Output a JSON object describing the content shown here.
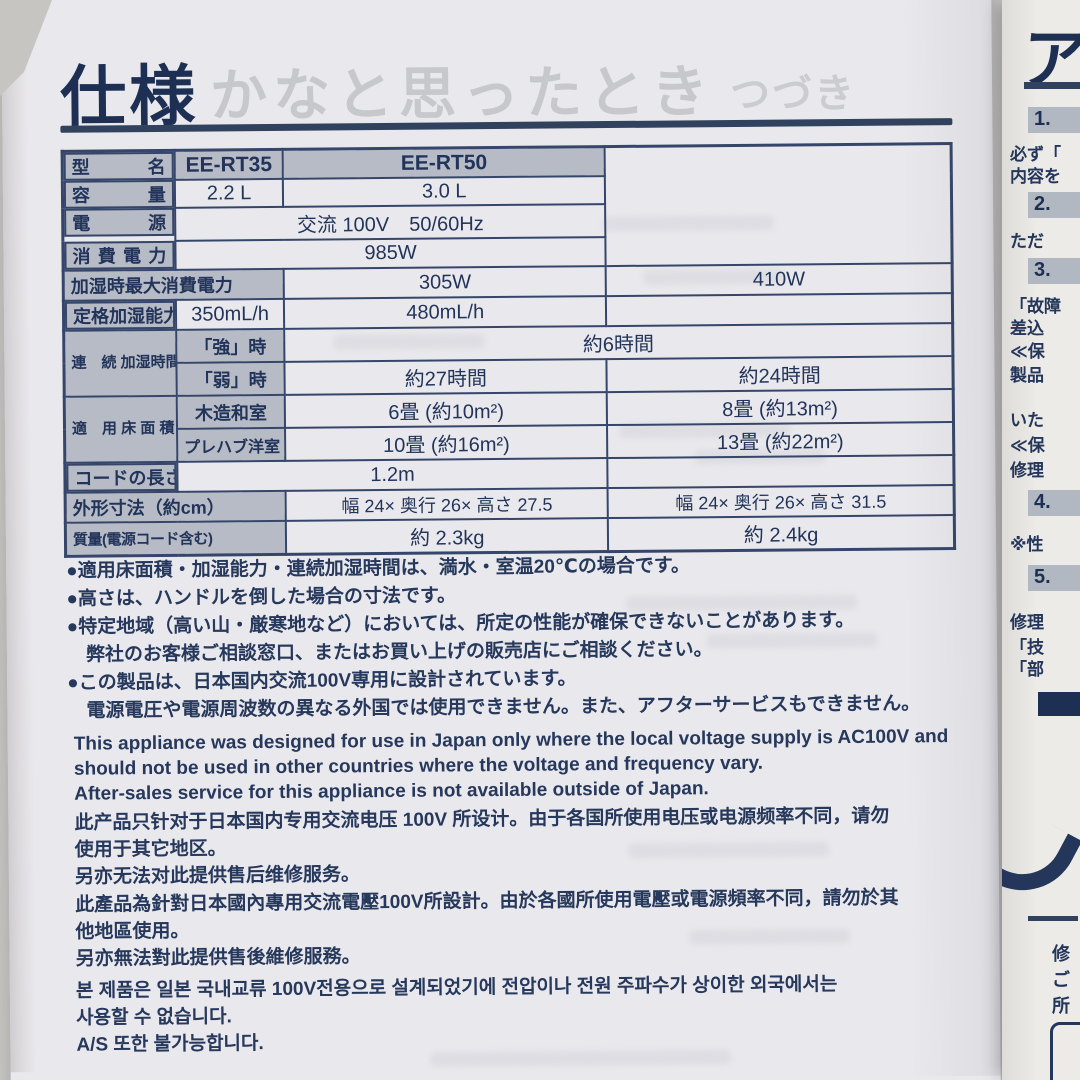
{
  "page": {
    "title": "仕様",
    "ghost_header": "かなと思ったとき",
    "ghost_continued": "つづき"
  },
  "colors": {
    "ink_navy": "#24365a",
    "table_border": "#35466a",
    "label_grey": "#b6bbc5",
    "paper": "#e9e8ec"
  },
  "spec_table": {
    "rows": {
      "model": {
        "label": "型名",
        "v1": "EE-RT35",
        "v2": "EE-RT50"
      },
      "capacity": {
        "label": "容量",
        "v1": "2.2 L",
        "v2": "3.0 L"
      },
      "power_source": {
        "label": "電源",
        "span": "交流 100V　50/60Hz"
      },
      "power_consumption": {
        "label": "消費電力",
        "span": "985W"
      },
      "max_humidifying_power": {
        "label": "加湿時最大消費電力",
        "v1": "305W",
        "v2": "410W"
      },
      "rated_humidifying_capacity": {
        "label": "定格加湿能力",
        "v1": "350mL/h",
        "v2": "480mL/h"
      },
      "continuous_time": {
        "group": "連　続\n加湿時間\n（目安）",
        "strong": {
          "label": "「強」時",
          "span": "約6時間"
        },
        "weak": {
          "label": "「弱」時",
          "v1": "約27時間",
          "v2": "約24時間"
        }
      },
      "floor_area": {
        "group": "適　用\n床 面 積\n（目安）",
        "wooden": {
          "label": "木造和室",
          "v1": "6畳 (約10m²)",
          "v2": "8畳 (約13m²)"
        },
        "prefab": {
          "label": "プレハブ洋室",
          "v1": "10畳 (約16m²)",
          "v2": "13畳 (約22m²)"
        }
      },
      "cord_length": {
        "label": "コードの長さ",
        "span": "1.2m"
      },
      "dimensions": {
        "label": "外形寸法（約cm）",
        "v1": "幅 24× 奥行 26× 高さ 27.5",
        "v2": "幅 24× 奥行 26× 高さ 31.5"
      },
      "weight": {
        "label": "質量(電源コード含む)",
        "v1": "約 2.3kg",
        "v2": "約 2.4kg"
      }
    }
  },
  "notes": {
    "n1": "●適用床面積・加湿能力・連続加湿時間は、満水・室温20℃の場合です。",
    "n2": "●高さは、ハンドルを倒した場合の寸法です。",
    "n3": "●特定地域（高い山・厳寒地など）においては、所定の性能が確保できないことがあります。\n弊社のお客様ご相談窓口、またはお買い上げの販売店にご相談ください。",
    "n4": "●この製品は、日本国内交流100V専用に設計されています。\n電源電圧や電源周波数の異なる外国では使用できません。また、アフターサービスもできません。"
  },
  "foreign": {
    "english": "This appliance was designed for use in Japan only where the local voltage supply is AC100V and\nshould not be used in other countries where the voltage and frequency vary.\nAfter-sales service for this appliance is not available outside of Japan.",
    "chinese_simplified": "此产品只针对于日本国内专用交流电压 100V 所设计。由于各国所使用电压或电源频率不同，请勿\n使用于其它地区。\n另亦无法对此提供售后维修服务。",
    "chinese_traditional": "此產品為針對日本國內專用交流電壓100V所設計。由於各國所使用電壓或電源頻率不同，請勿於其\n他地區使用。\n另亦無法對此提供售後維修服務。",
    "korean": "본 제품은 일본 국내교류 100V전용으로 설계되었기에 전압이나 전원 주파수가 상이한 외국에서는\n사용할 수 없습니다.\nA/S 또한 불가능합니다."
  },
  "next_page": {
    "title_fragment": "ア",
    "s1_num": "1.",
    "s1_l1": "必ず「",
    "s1_l2": "内容を",
    "s2_num": "2.",
    "s2_l1": "ただ",
    "s3_num": "3.",
    "s3_l1": "「故障",
    "s3_l2": "差込",
    "s3_l3": "≪保",
    "s3_l4": "製品",
    "s3_l5": "いた",
    "s3_l6": "≪保",
    "s3_l7": "修理",
    "s4_num": "4.",
    "s4_l1": "※性",
    "s5_num": "5.",
    "s5_l1": "修理",
    "s5_l2": "「技",
    "s5_l3": "「部",
    "frag1": "修",
    "frag2": "ご",
    "frag3": "所"
  }
}
